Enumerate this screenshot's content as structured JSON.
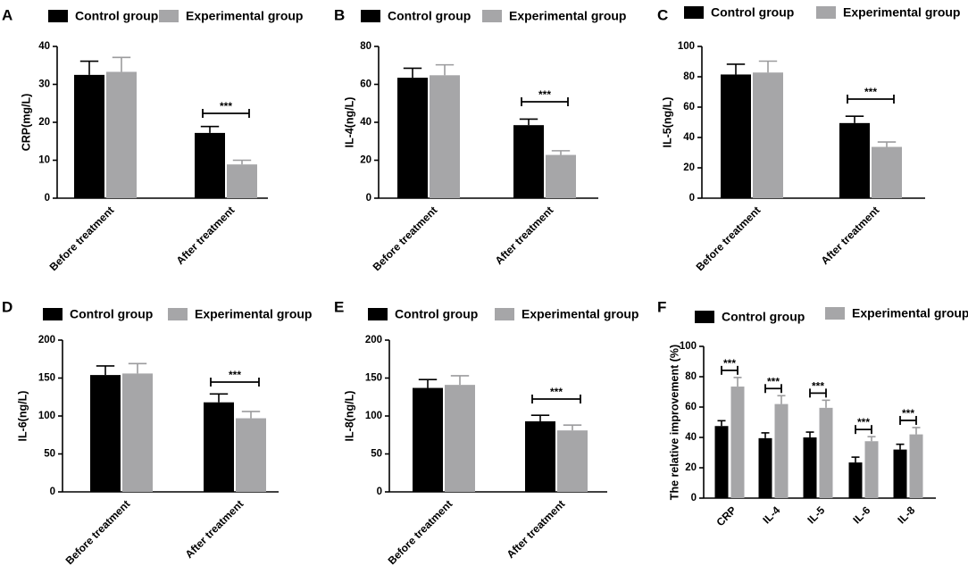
{
  "colors": {
    "control": "#000000",
    "experimental": "#a6a6a8",
    "experimental_err": "#9b9b9d"
  },
  "legend": {
    "control": "Control group",
    "experimental": "Experimental group"
  },
  "chart_data": [
    {
      "panel": "A",
      "type": "bar",
      "ylabel": "CRP(mg/L)",
      "ylim": [
        0,
        40
      ],
      "yticks": [
        0,
        10,
        20,
        30,
        40
      ],
      "categories": [
        "Before treatment",
        "After treatment"
      ],
      "series": [
        {
          "name": "Control group",
          "values": [
            32.5,
            17.2
          ],
          "errors": [
            3.6,
            1.7
          ]
        },
        {
          "name": "Experimental group",
          "values": [
            33.3,
            8.9
          ],
          "errors": [
            3.8,
            1.1
          ]
        }
      ],
      "significance": [
        {
          "category": 1,
          "label": "***"
        }
      ]
    },
    {
      "panel": "B",
      "type": "bar",
      "ylabel": "IL-4(ng/L)",
      "ylim": [
        0,
        80
      ],
      "yticks": [
        0,
        20,
        40,
        60,
        80
      ],
      "categories": [
        "Before treatment",
        "After treatment"
      ],
      "series": [
        {
          "name": "Control group",
          "values": [
            63.5,
            38.5
          ],
          "errors": [
            5.0,
            3.2
          ]
        },
        {
          "name": "Experimental group",
          "values": [
            64.8,
            22.8
          ],
          "errors": [
            5.5,
            2.2
          ]
        }
      ],
      "significance": [
        {
          "category": 1,
          "label": "***"
        }
      ]
    },
    {
      "panel": "C",
      "type": "bar",
      "ylabel": "IL-5(ng/L)",
      "ylim": [
        0,
        100
      ],
      "yticks": [
        0,
        20,
        40,
        60,
        80,
        100
      ],
      "categories": [
        "Before treatment",
        "After treatment"
      ],
      "series": [
        {
          "name": "Control group",
          "values": [
            81.5,
            49.5
          ],
          "errors": [
            6.8,
            4.5
          ]
        },
        {
          "name": "Experimental group",
          "values": [
            82.8,
            33.8
          ],
          "errors": [
            7.5,
            3.2
          ]
        }
      ],
      "significance": [
        {
          "category": 1,
          "label": "***"
        }
      ]
    },
    {
      "panel": "D",
      "type": "bar",
      "ylabel": "IL-6(ng/L)",
      "ylim": [
        0,
        200
      ],
      "yticks": [
        0,
        50,
        100,
        150,
        200
      ],
      "categories": [
        "Before treatment",
        "After treatment"
      ],
      "series": [
        {
          "name": "Control group",
          "values": [
            154,
            118
          ],
          "errors": [
            12,
            11
          ]
        },
        {
          "name": "Experimental group",
          "values": [
            156,
            97
          ],
          "errors": [
            13,
            9
          ]
        }
      ],
      "significance": [
        {
          "category": 1,
          "label": "***"
        }
      ]
    },
    {
      "panel": "E",
      "type": "bar",
      "ylabel": "IL-8(ng/L)",
      "ylim": [
        0,
        200
      ],
      "yticks": [
        0,
        50,
        100,
        150,
        200
      ],
      "categories": [
        "Before treatment",
        "After treatment"
      ],
      "series": [
        {
          "name": "Control group",
          "values": [
            137,
            93
          ],
          "errors": [
            11,
            8
          ]
        },
        {
          "name": "Experimental group",
          "values": [
            141,
            81
          ],
          "errors": [
            12,
            7
          ]
        }
      ],
      "significance": [
        {
          "category": 1,
          "label": "***"
        }
      ]
    },
    {
      "panel": "F",
      "type": "bar",
      "ylabel": "The relative improvement (%)",
      "ylim": [
        0,
        100
      ],
      "yticks": [
        0,
        20,
        40,
        60,
        80,
        100
      ],
      "categories": [
        "CRP",
        "IL-4",
        "IL-5",
        "IL-6",
        "IL-8"
      ],
      "series": [
        {
          "name": "Control group",
          "values": [
            47.5,
            39.5,
            40,
            23.5,
            32
          ],
          "errors": [
            3.5,
            3.5,
            3.5,
            3.5,
            3.5
          ]
        },
        {
          "name": "Experimental group",
          "values": [
            73.5,
            62,
            59.5,
            37.5,
            42
          ],
          "errors": [
            6,
            5.5,
            5,
            3,
            4.5
          ]
        }
      ],
      "significance": [
        {
          "category": 0,
          "label": "***"
        },
        {
          "category": 1,
          "label": "***"
        },
        {
          "category": 2,
          "label": "***"
        },
        {
          "category": 3,
          "label": "***"
        },
        {
          "category": 4,
          "label": "***"
        }
      ]
    }
  ]
}
